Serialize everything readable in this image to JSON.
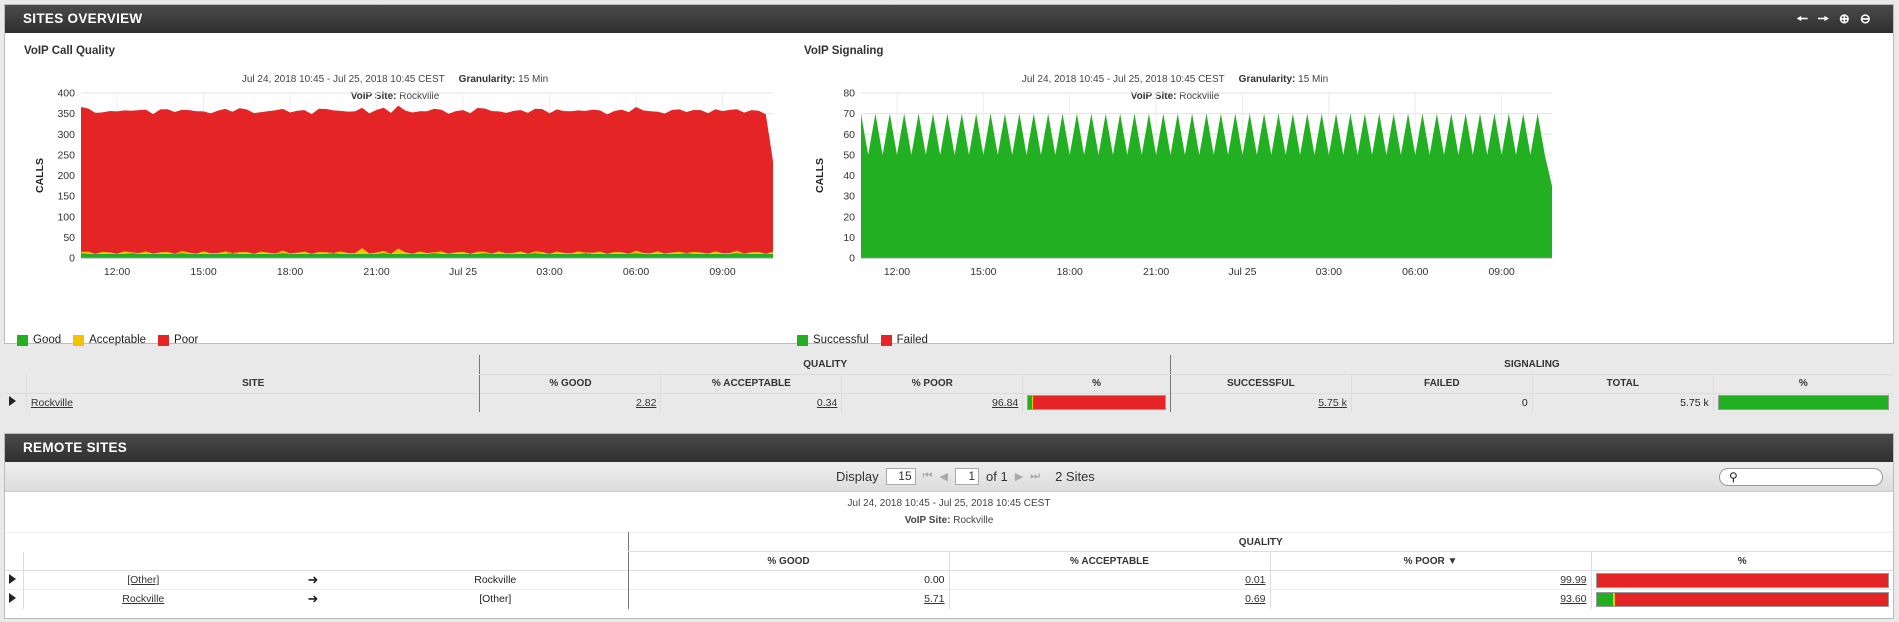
{
  "sites_overview": {
    "title": "SITES OVERVIEW",
    "tools": [
      "arrow-left-icon",
      "arrow-right-icon",
      "zoom-in-icon",
      "zoom-out-icon"
    ],
    "call_quality": {
      "title": "VoIP Call Quality",
      "date_range": "Jul 24, 2018 10:45 - Jul 25, 2018 10:45 CEST",
      "granularity_label": "Granularity:",
      "granularity_value": "15 Min",
      "site_label": "VoIP Site:",
      "site_value": "Rockville",
      "legend": [
        {
          "label": "Good",
          "color": "#22b022"
        },
        {
          "label": "Acceptable",
          "color": "#f3c200"
        },
        {
          "label": "Poor",
          "color": "#e52525"
        }
      ]
    },
    "signaling": {
      "title": "VoIP Signaling",
      "date_range": "Jul 24, 2018 10:45 - Jul 25, 2018 10:45 CEST",
      "granularity_label": "Granularity:",
      "granularity_value": "15 Min",
      "site_label": "VoIP Site:",
      "site_value": "Rockville",
      "legend": [
        {
          "label": "Successful",
          "color": "#22b022"
        },
        {
          "label": "Failed",
          "color": "#e52525"
        }
      ]
    },
    "table": {
      "group_quality": "QUALITY",
      "group_signaling": "SIGNALING",
      "headers": [
        "SITE",
        "% GOOD",
        "% ACCEPTABLE",
        "% POOR",
        "%",
        "SUCCESSFUL",
        "FAILED",
        "TOTAL",
        "%"
      ],
      "rows": [
        {
          "site": "Rockville",
          "good": "2.82",
          "acceptable": "0.34",
          "poor": "96.84",
          "successful": "5.75 k",
          "failed": "0",
          "total": "5.75 k",
          "quality_bar": [
            2.82,
            0.34,
            96.84
          ],
          "signaling_bar": [
            100,
            0
          ]
        }
      ]
    }
  },
  "chart_data": [
    {
      "type": "area",
      "title": "VoIP Call Quality",
      "ylabel": "CALLS",
      "xlabel": "",
      "x_ticks": [
        "12:00",
        "15:00",
        "18:00",
        "21:00",
        "Jul 25",
        "03:00",
        "06:00",
        "09:00"
      ],
      "ylim": [
        0,
        400
      ],
      "y_ticks": [
        0,
        50,
        100,
        150,
        200,
        250,
        300,
        350,
        400
      ],
      "grid": true,
      "legend_position": "bottom-left",
      "x_range": [
        "Jul 24, 2018 10:45",
        "Jul 25, 2018 10:45"
      ],
      "interval": "15 Min",
      "stacked": true,
      "series": [
        {
          "name": "Good",
          "color": "#22b022",
          "base": 10,
          "approx_total_pct": 2.82
        },
        {
          "name": "Acceptable",
          "color": "#f3c200",
          "base": 3,
          "approx_total_pct": 0.34
        },
        {
          "name": "Poor",
          "color": "#e52525",
          "base": 343,
          "final_total": 235,
          "approx_total_pct": 96.84
        }
      ]
    },
    {
      "type": "area",
      "title": "VoIP Signaling",
      "ylabel": "CALLS",
      "xlabel": "",
      "x_ticks": [
        "12:00",
        "15:00",
        "18:00",
        "21:00",
        "Jul 25",
        "03:00",
        "06:00",
        "09:00"
      ],
      "ylim": [
        0,
        80
      ],
      "y_ticks": [
        0,
        10,
        20,
        30,
        40,
        50,
        60,
        70,
        80
      ],
      "grid": true,
      "legend_position": "bottom-left",
      "x_range": [
        "Jul 24, 2018 10:45",
        "Jul 25, 2018 10:45"
      ],
      "interval": "15 Min",
      "stacked": true,
      "series": [
        {
          "name": "Successful",
          "color": "#22b022",
          "alternating": [
            70,
            50
          ],
          "final": 35
        },
        {
          "name": "Failed",
          "color": "#e52525",
          "values_all": 0
        }
      ]
    }
  ],
  "remote_sites": {
    "title": "REMOTE SITES",
    "pager": {
      "display_label": "Display",
      "page_size": "15",
      "page": "1",
      "of_label": "of 1",
      "count_label": "2 Sites"
    },
    "date_range": "Jul 24, 2018 10:45 - Jul 25, 2018 10:45 CEST",
    "site_label": "VoIP Site:",
    "site_value": "Rockville",
    "group_quality": "QUALITY",
    "headers": [
      "% GOOD",
      "% ACCEPTABLE",
      "% POOR",
      "%"
    ],
    "sort_indicator": "descending",
    "rows": [
      {
        "from": "[Other]",
        "to": "Rockville",
        "good": "0.00",
        "acceptable": "0.01",
        "poor": "99.99",
        "bar": [
          0,
          0.01,
          99.99
        ]
      },
      {
        "from": "Rockville",
        "to": "[Other]",
        "good": "5.71",
        "acceptable": "0.69",
        "poor": "93.60",
        "bar": [
          5.71,
          0.69,
          93.6
        ]
      }
    ]
  }
}
